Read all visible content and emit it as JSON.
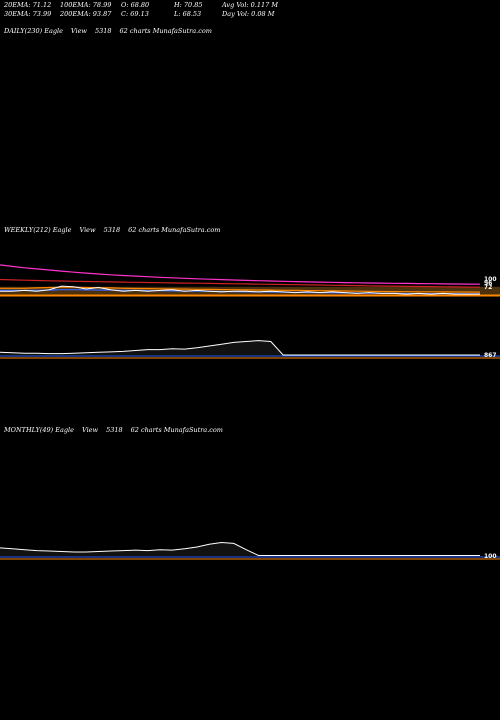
{
  "stats": {
    "row1": [
      "20EMA: 71.12",
      "100EMA: 78.99",
      "O: 68.80",
      "H: 70.85",
      "Avg Vol: 0.117 M"
    ],
    "row2": [
      "30EMA: 73.99",
      "200EMA: 93.87",
      "C: 69.13",
      "L: 68.53",
      "Day Vol: 0.08 M"
    ]
  },
  "panels": {
    "daily": {
      "label": "DAILY(230) Eagle",
      "view": "View",
      "code": "5318",
      "site": "62  charts MunafaSutra.com"
    },
    "weekly": {
      "label": "WEEKLY(212) Eagle",
      "view": "View",
      "code": "5318",
      "site": "62  charts MunafaSutra.com"
    },
    "monthly": {
      "label": "MONTHLY(49) Eagle",
      "view": "View",
      "code": "5318",
      "site": "62  charts MunafaSutra.com"
    }
  },
  "chart_data": [
    {
      "type": "line",
      "name": "weekly-price",
      "colors": {
        "price": "#ffffff",
        "ema_pink": "#ff33cc",
        "ema_orange": "#ff8800",
        "ema_red": "#cc2222",
        "ema_blue": "#3366ff",
        "band": "#8a5a1a"
      },
      "y_ticks": [
        "100",
        "96",
        "72"
      ],
      "series": [
        {
          "role": "price",
          "values": [
            72,
            72,
            73,
            72,
            74,
            79,
            78,
            75,
            77,
            74,
            72,
            73,
            72,
            73,
            74,
            72,
            73,
            72,
            71,
            72,
            72,
            71,
            72,
            71,
            70,
            71,
            70,
            71,
            70,
            69,
            70,
            69,
            69,
            68,
            69,
            68,
            69,
            68,
            68,
            68
          ]
        },
        {
          "role": "ema_pink",
          "values": [
            108,
            106,
            104,
            102.5,
            101,
            99.5,
            98,
            96.8,
            95.6,
            94.5,
            93.5,
            92.6,
            91.8,
            91,
            90.3,
            89.6,
            89,
            88.4,
            87.8,
            87.3,
            86.8,
            86.3,
            85.9,
            85.5,
            85.1,
            84.7,
            84.4,
            84.1,
            83.8,
            83.5,
            83.2,
            83,
            82.8,
            82.6,
            82.4,
            82.2,
            82,
            81.8,
            81.7,
            81.6
          ]
        },
        {
          "role": "ema_red",
          "values": [
            88,
            87.5,
            87,
            86.6,
            86.2,
            85.9,
            85.6,
            85.3,
            85,
            84.7,
            84.4,
            84.1,
            83.9,
            83.6,
            83.4,
            83.1,
            82.9,
            82.6,
            82.4,
            82.1,
            81.9,
            81.6,
            81.4,
            81.1,
            80.9,
            80.6,
            80.4,
            80.1,
            79.9,
            79.6,
            79.4,
            79.1,
            78.9,
            78.6,
            78.4,
            78.2,
            78,
            77.8,
            77.6,
            77.4
          ]
        },
        {
          "role": "ema_orange",
          "values": [
            76,
            76,
            76,
            76.5,
            77,
            77.5,
            77.5,
            77,
            76.8,
            76.5,
            76,
            75.7,
            75.5,
            75.3,
            75,
            74.8,
            74.6,
            74.4,
            74.2,
            74,
            73.8,
            73.6,
            73.4,
            73.2,
            73,
            72.8,
            72.6,
            72.4,
            72.2,
            72,
            71.8,
            71.6,
            71.4,
            71.3,
            71.2,
            71.1,
            71,
            70.9,
            70.8,
            70.7
          ]
        },
        {
          "role": "ema_blue",
          "values": [
            73,
            73,
            73,
            73.2,
            73.5,
            74,
            74,
            73.8,
            73.6,
            73.4,
            73.2,
            73,
            72.8,
            72.6,
            72.4,
            72.2,
            72,
            71.8,
            71.6,
            71.4,
            71.2,
            71,
            70.8,
            70.6,
            70.4,
            70.2,
            70,
            69.8,
            69.6,
            69.4,
            69.2,
            69,
            68.9,
            68.8,
            68.7,
            68.6,
            68.5,
            68.5,
            68.4,
            68.4
          ]
        }
      ]
    },
    {
      "type": "area",
      "name": "weekly-volume",
      "y_ticks": [
        "867"
      ],
      "values": [
        6,
        5,
        4,
        4,
        3,
        3,
        4,
        5,
        6,
        7,
        8,
        10,
        12,
        12,
        14,
        13,
        16,
        20,
        24,
        28,
        30,
        32,
        30,
        0,
        0,
        0,
        0,
        0,
        0,
        0,
        0,
        0,
        0,
        0,
        0,
        0,
        0,
        0,
        0,
        0
      ]
    },
    {
      "type": "area",
      "name": "monthly-volume",
      "y_ticks": [
        "100"
      ],
      "values": [
        18,
        16,
        14,
        12,
        11,
        10,
        9,
        9,
        10,
        11,
        12,
        13,
        12,
        14,
        13,
        16,
        20,
        26,
        30,
        28,
        14,
        1,
        1,
        1,
        1,
        1,
        1,
        1,
        1,
        1,
        1,
        1,
        1,
        1,
        1,
        1,
        1,
        1,
        1,
        1
      ]
    }
  ]
}
